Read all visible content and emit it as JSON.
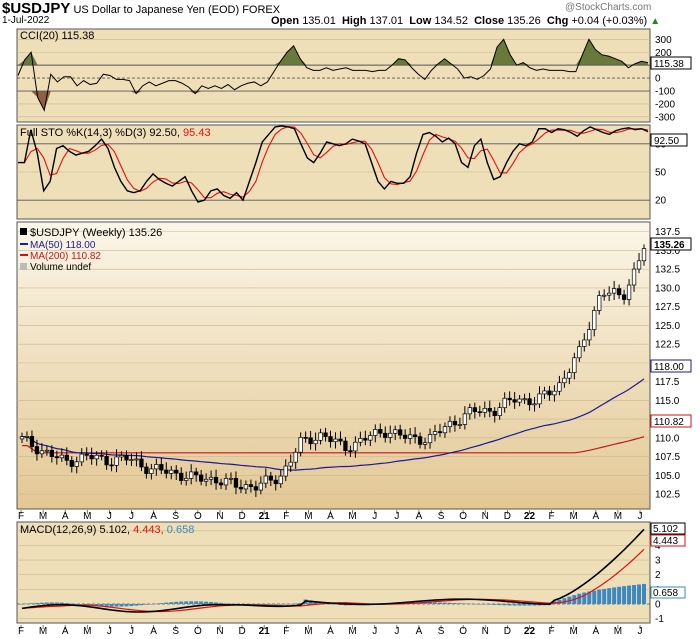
{
  "header": {
    "symbol": "$USDJPY",
    "description": "US Dollar to Japanese Yen (EOD)",
    "exchange": "FOREX",
    "date": "1-Jul-2022",
    "watermark": "@StockCharts.com",
    "open_label": "Open",
    "open": "135.01",
    "high_label": "High",
    "high": "137.01",
    "low_label": "Low",
    "low": "134.52",
    "close_label": "Close",
    "close": "135.26",
    "chg_label": "Chg",
    "chg": "+0.04 (+0.03%)",
    "chg_arrow": "▲"
  },
  "colors": {
    "panel_bg": "#eedfb8",
    "price_bg_top": "#fbf6e8",
    "price_bg_bottom": "#e3c895",
    "cci_fill": "#5a6e2e",
    "cci_fill_neg": "#7a4a2c",
    "sto_k": "#000000",
    "sto_d": "#e01010",
    "ma50": "#1a1a9a",
    "ma200": "#c41818",
    "macd": "#000000",
    "macd_signal": "#e01010",
    "macd_hist": "#3b88c4",
    "price_bar": "#000000",
    "tag_bg": "#ffffff"
  },
  "x_axis": {
    "labels": [
      "F",
      "M",
      "A",
      "M",
      "J",
      "J",
      "A",
      "S",
      "O",
      "N",
      "D",
      "21",
      "F",
      "M",
      "A",
      "M",
      "J",
      "J",
      "A",
      "S",
      "O",
      "N",
      "D",
      "22",
      "F",
      "M",
      "A",
      "M",
      "J"
    ],
    "bold": [
      "21",
      "22"
    ]
  },
  "cci": {
    "legend": "CCI(20) 115.38",
    "value_tag": "115.38",
    "ticks": [
      "300",
      "200",
      "100",
      "0",
      "-100",
      "-200",
      "-300"
    ],
    "tick_values": [
      300,
      200,
      100,
      0,
      -100,
      -200,
      -300
    ],
    "reference_lines": [
      100,
      0,
      -100
    ],
    "values": [
      20,
      140,
      200,
      -150,
      -250,
      30,
      -30,
      10,
      10,
      -60,
      -20,
      -50,
      -40,
      30,
      20,
      -10,
      -10,
      -20,
      -120,
      -60,
      -30,
      -60,
      -40,
      -20,
      -20,
      -40,
      -70,
      -120,
      -60,
      -80,
      -60,
      -80,
      -50,
      -90,
      -60,
      -40,
      -30,
      -60,
      -30,
      50,
      130,
      200,
      250,
      150,
      80,
      60,
      60,
      80,
      60,
      70,
      80,
      60,
      60,
      60,
      50,
      60,
      60,
      100,
      150,
      140,
      80,
      30,
      -10,
      60,
      110,
      150,
      110,
      70,
      0,
      10,
      -10,
      20,
      70,
      240,
      300,
      180,
      100,
      120,
      80,
      60,
      70,
      60,
      60,
      60,
      50,
      50,
      180,
      300,
      220,
      180,
      170,
      150,
      130,
      80,
      110,
      130,
      120
    ]
  },
  "sto": {
    "legend": "Full STO %K(14,3) %D(3) 92.50,",
    "d_value": "95.43",
    "value_tag": "92.50",
    "ticks": [
      "80",
      "50",
      "20"
    ],
    "tick_values": [
      80,
      50,
      20
    ],
    "reference_lines": [
      80,
      20
    ],
    "k_values": [
      60,
      60,
      95,
      70,
      30,
      40,
      75,
      78,
      72,
      68,
      70,
      72,
      78,
      85,
      75,
      55,
      40,
      30,
      28,
      30,
      40,
      48,
      42,
      38,
      35,
      40,
      45,
      30,
      18,
      20,
      30,
      32,
      25,
      22,
      28,
      20,
      40,
      60,
      82,
      90,
      98,
      99,
      98,
      96,
      80,
      65,
      60,
      70,
      82,
      80,
      78,
      80,
      85,
      83,
      80,
      60,
      40,
      32,
      40,
      38,
      38,
      45,
      70,
      90,
      92,
      88,
      82,
      86,
      80,
      60,
      55,
      78,
      85,
      60,
      42,
      45,
      60,
      72,
      80,
      78,
      82,
      96,
      96,
      92,
      96,
      95,
      92,
      88,
      94,
      98,
      95,
      92,
      90,
      94,
      96,
      97,
      95,
      96,
      93
    ]
  },
  "price": {
    "legend_title": "$USDJPY (Weekly) 135.26",
    "ma50_label": "MA(50) 118.00",
    "ma200_label": "MA(200) 110.82",
    "volume_label": "Volume undef",
    "ticks": [
      "137.5",
      "135.0",
      "132.5",
      "130.0",
      "127.5",
      "125.0",
      "122.5",
      "120.0",
      "117.5",
      "115.0",
      "112.5",
      "110.0",
      "107.5",
      "105.0",
      "102.5"
    ],
    "tick_values": [
      137.5,
      135,
      132.5,
      130,
      127.5,
      125,
      122.5,
      120,
      117.5,
      115,
      112.5,
      110,
      107.5,
      105,
      102.5
    ],
    "close_tag": "135.26",
    "ma50_tag": "118.00",
    "ma200_tag": "110.82",
    "ylim": [
      100.5,
      138.8
    ]
  },
  "macd": {
    "legend_prefix": "MACD(12,26,9)",
    "macd_value": "5.102,",
    "signal_value": "4.443,",
    "hist_value": "0.658",
    "tag_macd": "5.102",
    "tag_signal": "4.443",
    "tag_hist": "0.658",
    "ticks": [
      "5",
      "4",
      "3",
      "2",
      "1",
      "0",
      "-1"
    ],
    "tick_values": [
      5,
      4,
      3,
      2,
      1,
      0,
      -1
    ]
  },
  "chart_data": [
    {
      "type": "line",
      "title": "CCI(20) 115.38",
      "ylim": [
        -340,
        380
      ],
      "series": [
        {
          "name": "CCI(20)",
          "values": "see cci.values"
        }
      ]
    },
    {
      "type": "line",
      "title": "Full STO %K(14,3) %D(3) 92.50, 95.43",
      "ylim": [
        0,
        100
      ]
    },
    {
      "type": "candlestick",
      "title": "$USDJPY (Weekly) 135.26",
      "x_months": [
        "F",
        "M",
        "A",
        "M",
        "J",
        "J",
        "A",
        "S",
        "O",
        "N",
        "D",
        "21",
        "F",
        "M",
        "A",
        "M",
        "J",
        "J",
        "A",
        "S",
        "O",
        "N",
        "D",
        "22",
        "F",
        "M",
        "A",
        "M",
        "J"
      ],
      "monthly_close": [
        109.8,
        108.2,
        106.8,
        107.5,
        107.0,
        107.2,
        105.8,
        105.4,
        104.6,
        104.5,
        103.6,
        103.6,
        104.7,
        109.3,
        110.5,
        108.6,
        109.9,
        111.0,
        109.9,
        109.9,
        111.9,
        113.5,
        113.7,
        115.2,
        114.9,
        116.9,
        121.4,
        129.6,
        128.7,
        135.3
      ],
      "ylim": [
        100.5,
        138.8
      ],
      "series_names": [
        "MA(50) 118.00",
        "MA(200) 110.82"
      ]
    },
    {
      "type": "line",
      "title": "MACD(12,26,9) 5.102, 4.443, 0.658",
      "ylim": [
        -1.3,
        5.6
      ]
    }
  ]
}
